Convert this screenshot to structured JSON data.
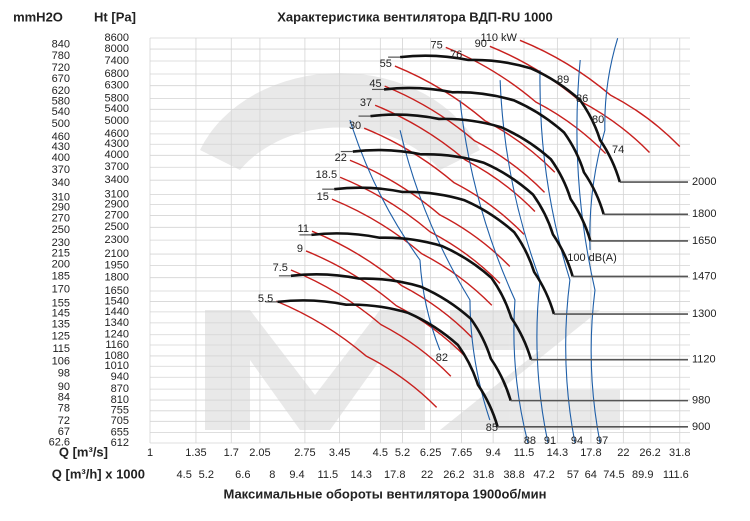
{
  "chart_data": {
    "type": "line",
    "title": "Характеристика вентилятора ВДП-RU 1000",
    "y_label": "Ht [Pa]",
    "y2_label": "mmH2O",
    "x_label": "Q [m³/s]",
    "x2_label": "Q [m³/h] x 1000",
    "caption": "Максимальные обороты вентилятора 1900об/мин",
    "log_x": true,
    "log_y": true,
    "grid": true,
    "xlim": [
      1,
      34
    ],
    "ylim": [
      612,
      8600
    ],
    "y2lim": [
      62.4,
      877
    ],
    "x2lim": [
      3.6,
      122.4
    ],
    "xticks": [
      1,
      1.35,
      1.7,
      2.05,
      2.75,
      3.45,
      4.5,
      5.2,
      6.25,
      7.65,
      9.4,
      11.5,
      14.3,
      17.8,
      22,
      26.2,
      31.8
    ],
    "x2ticks": [
      4.5,
      5.2,
      6.6,
      8,
      9.4,
      11.5,
      14.3,
      17.8,
      22,
      26.2,
      31.8,
      38.8,
      47.2,
      57,
      64,
      74.5,
      89.9,
      111.6
    ],
    "yticks": [
      8600,
      8000,
      7400,
      6800,
      6300,
      5800,
      5400,
      5000,
      4600,
      4300,
      4000,
      3700,
      3400,
      3100,
      2900,
      2700,
      2500,
      2300,
      2100,
      1950,
      1800,
      1650,
      1540,
      1440,
      1340,
      1240,
      1160,
      1080,
      1010,
      940,
      870,
      810,
      755,
      705,
      655,
      612
    ],
    "y2ticks": [
      840,
      780,
      720,
      670,
      620,
      580,
      540,
      500,
      460,
      430,
      400,
      370,
      340,
      310,
      290,
      270,
      250,
      230,
      215,
      200,
      185,
      170,
      155,
      145,
      135,
      125,
      115,
      106,
      98,
      90,
      84,
      78,
      72,
      67,
      62.6
    ],
    "series": [
      {
        "name": "2000",
        "color": "#111111",
        "x": [
          5.12,
          8,
          12,
          16.6,
          18.9,
          21.5
        ],
        "values": [
          7590,
          7450,
          7060,
          5730,
          4420,
          3360
        ]
      },
      {
        "name": "1800",
        "color": "#111111",
        "x": [
          4.61,
          7.2,
          10.8,
          14.94,
          17.01,
          19.35
        ],
        "values": [
          6148,
          6035,
          5719,
          4641,
          3580,
          2722
        ]
      },
      {
        "name": "1650",
        "color": "#111111",
        "x": [
          4.22,
          6.6,
          9.9,
          13.7,
          15.59,
          17.74
        ],
        "values": [
          5166,
          5071,
          4805,
          3900,
          3008,
          2287
        ]
      },
      {
        "name": "1470",
        "color": "#111111",
        "x": [
          3.76,
          5.88,
          8.82,
          12.2,
          13.89,
          15.8
        ],
        "values": [
          4100,
          4025,
          3814,
          3095,
          2388,
          1815
        ]
      },
      {
        "name": "1300",
        "color": "#111111",
        "x": [
          3.33,
          5.2,
          7.8,
          10.79,
          12.29,
          13.98
        ],
        "values": [
          3207,
          3148,
          2983,
          2421,
          1867,
          1420
        ]
      },
      {
        "name": "1120",
        "color": "#111111",
        "x": [
          2.87,
          4.48,
          6.72,
          9.3,
          10.58,
          12.04
        ],
        "values": [
          2380,
          2336,
          2214,
          1797,
          1386,
          1054
        ]
      },
      {
        "name": "980",
        "color": "#111111",
        "x": [
          2.51,
          3.92,
          5.88,
          8.13,
          9.26,
          10.54
        ],
        "values": [
          1822,
          1789,
          1695,
          1376,
          1061,
          807
        ]
      },
      {
        "name": "900",
        "color": "#111111",
        "x": [
          2.3,
          3.6,
          5.4,
          7.47,
          8.51,
          9.68
        ],
        "values": [
          1537,
          1509,
          1430,
          1160,
          895,
          680
        ]
      }
    ],
    "power_curves": [
      {
        "name": "5.5",
        "color": "#c8201e",
        "x": [
          2.28,
          4.1,
          6.5
        ],
        "values": [
          1545,
          1080,
          772
        ]
      },
      {
        "name": "7.5",
        "color": "#c8201e",
        "x": [
          2.51,
          4.52,
          7.13
        ],
        "values": [
          1892,
          1325,
          946
        ]
      },
      {
        "name": "9",
        "color": "#c8201e",
        "x": [
          2.77,
          4.99,
          7.87
        ],
        "values": [
          2143,
          1500,
          1072
        ]
      },
      {
        "name": "11",
        "color": "#c8201e",
        "x": [
          2.88,
          5.18,
          8.18
        ],
        "values": [
          2438,
          1707,
          1219
        ]
      },
      {
        "name": "15",
        "color": "#c8201e",
        "x": [
          3.28,
          5.9,
          9.32
        ],
        "values": [
          3006,
          2104,
          1503
        ]
      },
      {
        "name": "18.5",
        "color": "#c8201e",
        "x": [
          3.46,
          6.23,
          9.83
        ],
        "values": [
          3467,
          2427,
          1734
        ]
      },
      {
        "name": "22",
        "color": "#c8201e",
        "x": [
          3.69,
          6.64,
          10.48
        ],
        "values": [
          3873,
          2711,
          1937
        ]
      },
      {
        "name": "30",
        "color": "#c8201e",
        "x": [
          4.05,
          7.29,
          11.5
        ],
        "values": [
          4775,
          3343,
          2388
        ]
      },
      {
        "name": "37",
        "color": "#c8201e",
        "x": [
          4.35,
          7.83,
          12.35
        ],
        "values": [
          5546,
          3882,
          2773
        ]
      },
      {
        "name": "45",
        "color": "#c8201e",
        "x": [
          4.63,
          8.33,
          13.15
        ],
        "values": [
          6281,
          4397,
          3141
        ]
      },
      {
        "name": "55",
        "color": "#c8201e",
        "x": [
          4.95,
          8.91,
          14.06
        ],
        "values": [
          7161,
          5013,
          3581
        ]
      },
      {
        "name": "75",
        "color": "#c8201e",
        "x": [
          6.9,
          12.42,
          19.6
        ],
        "values": [
          8091,
          5664,
          4046
        ]
      },
      {
        "name": "90",
        "color": "#c8201e",
        "x": [
          9.2,
          16.56,
          26.1
        ],
        "values": [
          8147,
          5703,
          4074
        ]
      },
      {
        "name": "110 kW",
        "color": "#c8201e",
        "x": [
          11.2,
          20.2,
          31.8
        ],
        "values": [
          8472,
          5930,
          4236
        ]
      }
    ],
    "noise_curves": [
      {
        "name": "82",
        "color": "#1f5fa8",
        "x": [
          6.64,
          5.83,
          3.69
        ],
        "values": [
          1122,
          2019,
          5035
        ]
      },
      {
        "name": "85",
        "color": "#1f5fa8",
        "x": [
          9.2,
          8.08,
          5.12
        ],
        "values": [
          711,
          1556,
          4710
        ]
      },
      {
        "name": "88",
        "color": "#1f5fa8",
        "x": [
          11.8,
          10.84,
          7.57
        ],
        "values": [
          612,
          1556,
          5730
        ]
      },
      {
        "name": "91",
        "color": "#1f5fa8",
        "x": [
          13.45,
          12.77,
          9.84
        ],
        "values": [
          612,
          1773,
          6530
        ]
      },
      {
        "name": "94",
        "color": "#1f5fa8",
        "x": [
          16.04,
          15.52,
          12.77
        ],
        "values": [
          612,
          1773,
          6970
        ]
      },
      {
        "name": "97",
        "color": "#1f5fa8",
        "x": [
          18.9,
          18.28,
          16.6
        ],
        "values": [
          612,
          1660,
          7450
        ]
      },
      {
        "name": "100 dB(A)",
        "color": "#1f5fa8",
        "x": [
          17.7,
          19.5,
          21.2
        ],
        "values": [
          2157,
          4710,
          8590
        ]
      }
    ],
    "annotations": [
      "74",
      "76",
      "80",
      "86",
      "89"
    ]
  }
}
